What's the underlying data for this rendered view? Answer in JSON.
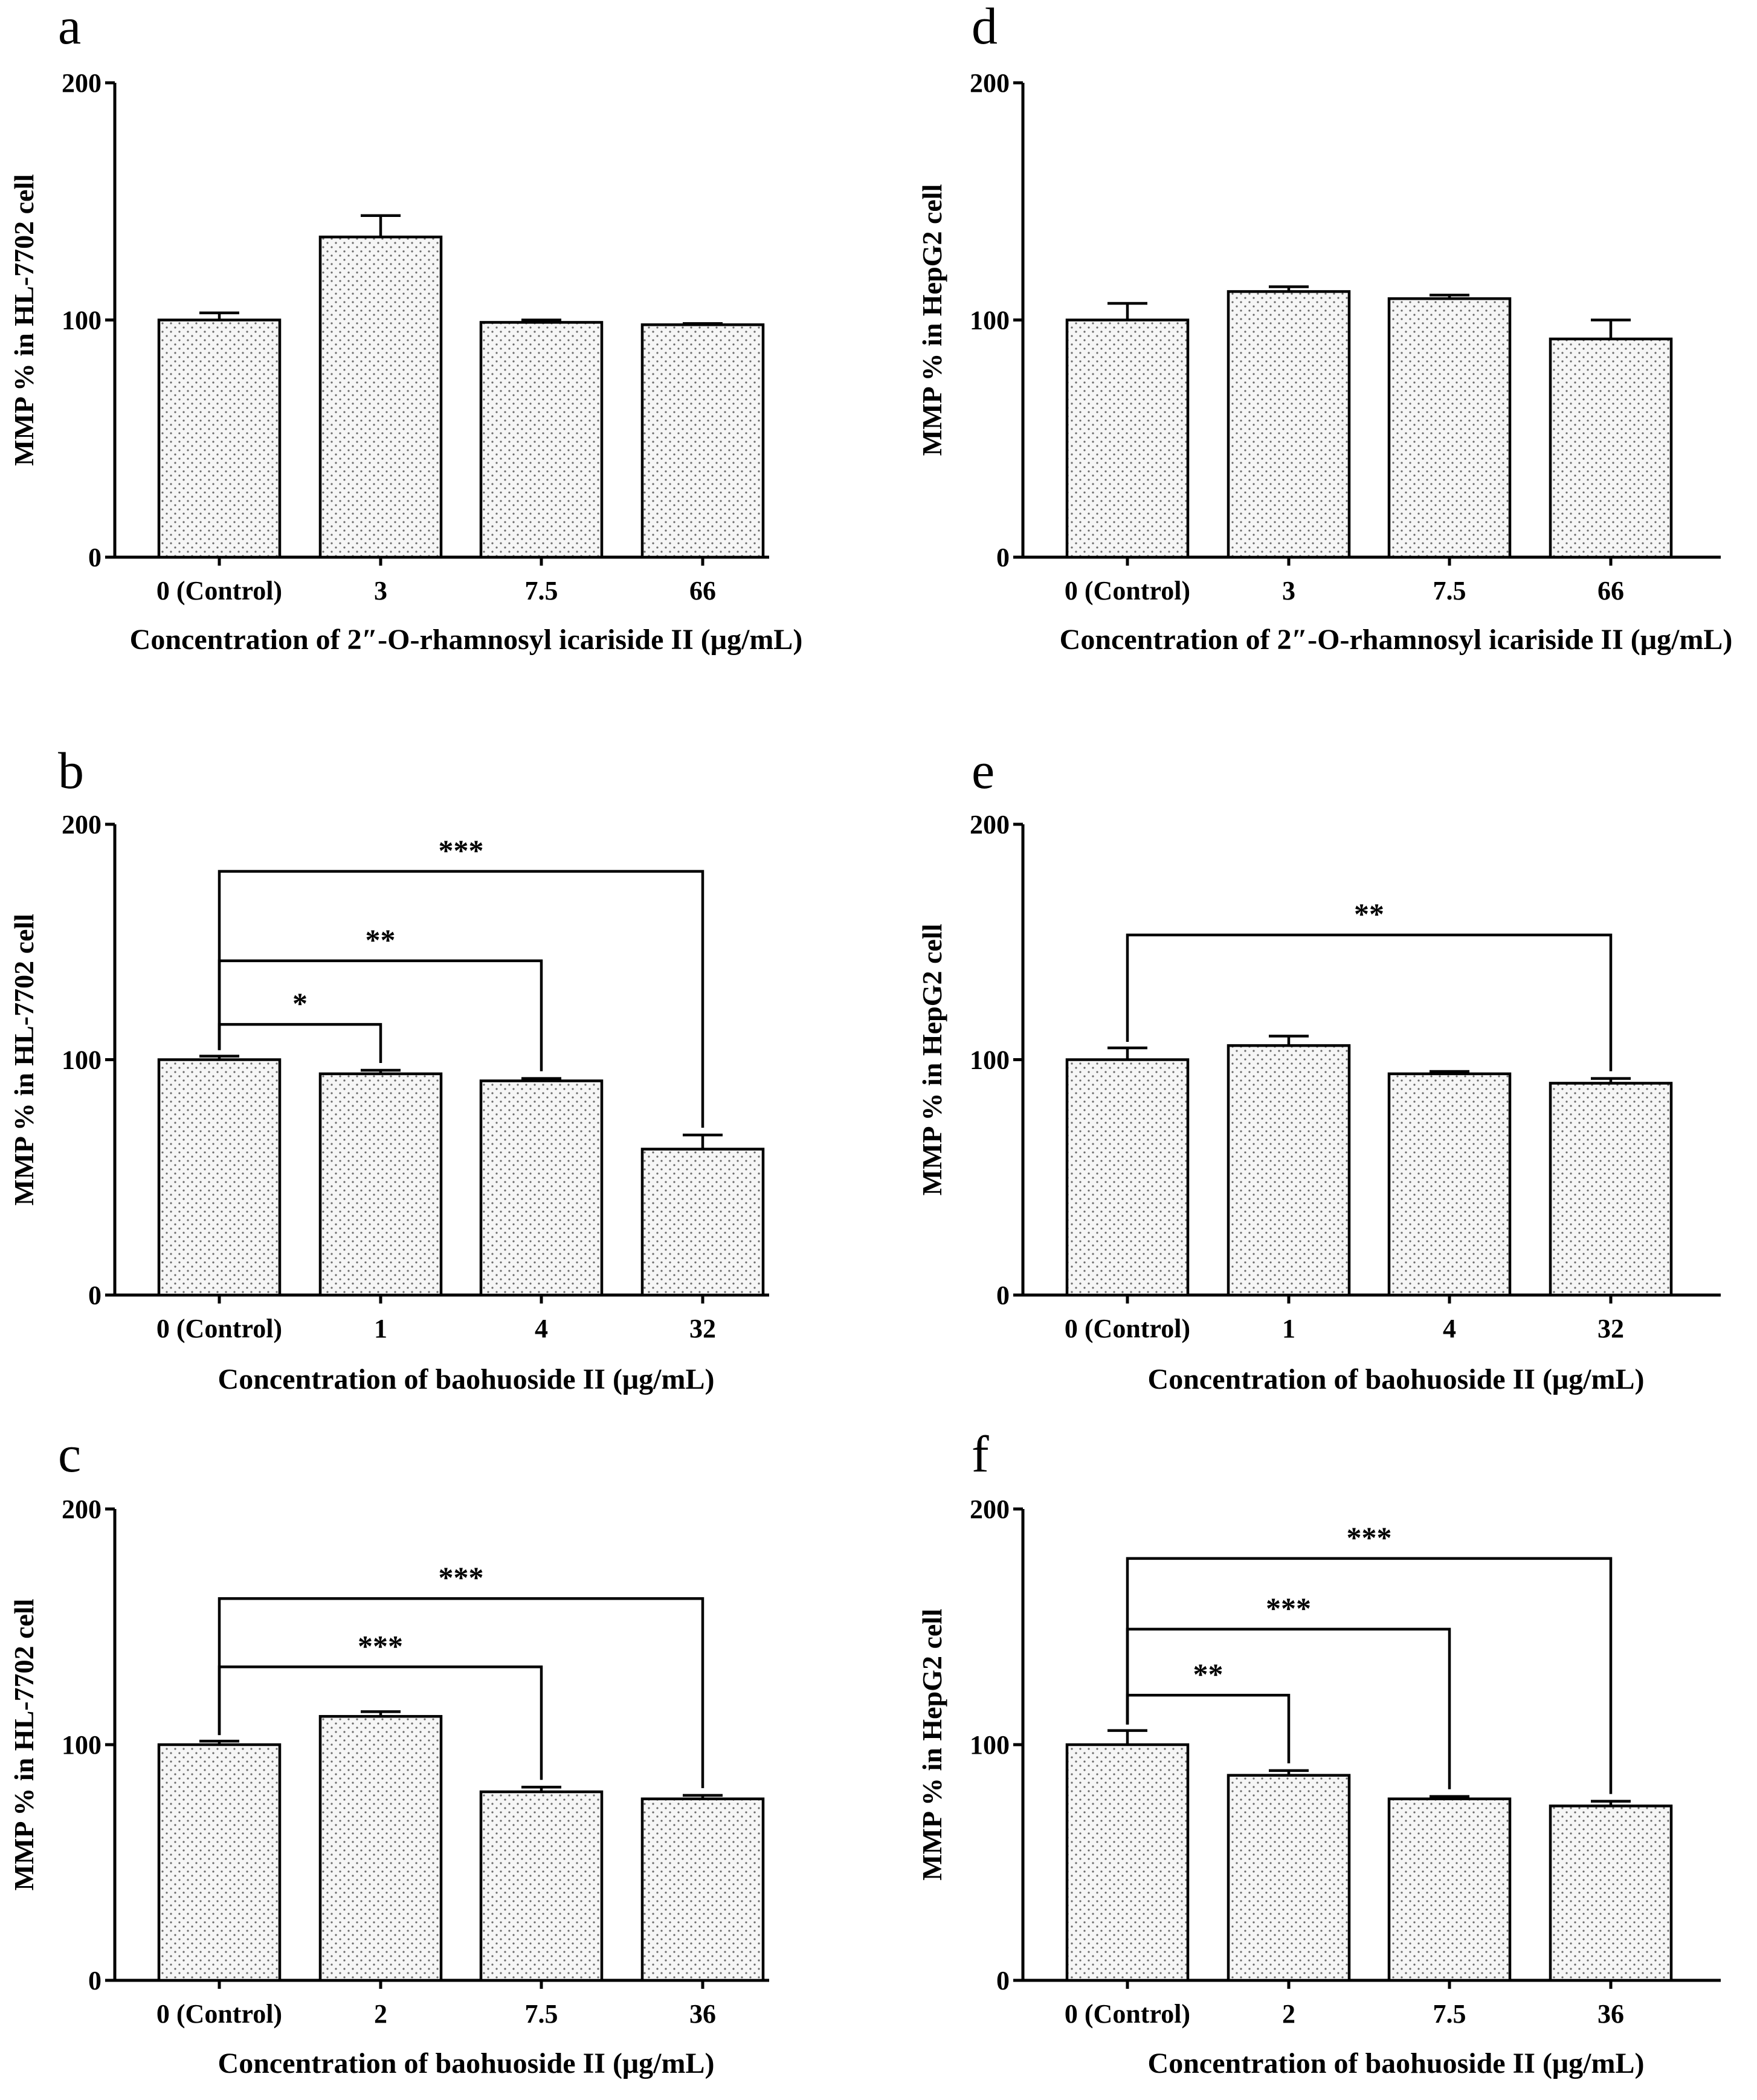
{
  "figure": {
    "panels": [
      {
        "id": "a",
        "letter": "a",
        "ylabel": "MMP % in HL-7702 cell",
        "xlabel": "Concentration of 2″-O-rhamnosyl icariside II (μg/mL)",
        "ytick_labels": [
          "0",
          "100",
          "200"
        ]
      },
      {
        "id": "b",
        "letter": "b",
        "ylabel": "MMP % in HL-7702 cell",
        "xlabel": "Concentration of baohuoside II (μg/mL)",
        "ytick_labels": [
          "0",
          "100",
          "200"
        ]
      },
      {
        "id": "c",
        "letter": "c",
        "ylabel": "MMP % in HL-7702 cell",
        "xlabel": "Concentration of baohuoside II (μg/mL)",
        "ytick_labels": [
          "0",
          "100",
          "200"
        ]
      },
      {
        "id": "d",
        "letter": "d",
        "ylabel": "MMP % in HepG2 cell",
        "xlabel": "Concentration of 2″-O-rhamnosyl icariside II (μg/mL)",
        "ytick_labels": [
          "0",
          "100",
          "200"
        ]
      },
      {
        "id": "e",
        "letter": "e",
        "ylabel": "MMP % in HepG2 cell",
        "xlabel": "Concentration of baohuoside II (μg/mL)",
        "ytick_labels": [
          "0",
          "100",
          "200"
        ]
      },
      {
        "id": "f",
        "letter": "f",
        "ylabel": "MMP % in HepG2 cell",
        "xlabel": "Concentration of baohuoside II (μg/mL)",
        "ytick_labels": [
          "0",
          "100",
          "200"
        ]
      }
    ]
  },
  "chart_data": [
    {
      "id": "a",
      "type": "bar",
      "title": "a",
      "xlabel": "Concentration of 2″-O-rhamnosyl icariside II (μg/mL)",
      "ylabel": "MMP % in HL-7702 cell",
      "ylim": [
        0,
        200
      ],
      "yticks": [
        0,
        100,
        200
      ],
      "categories": [
        "0 (Control)",
        "3",
        "7.5",
        "66"
      ],
      "values": [
        100,
        135,
        99,
        98
      ],
      "errors": [
        3,
        9,
        1,
        0.5
      ],
      "significance": []
    },
    {
      "id": "b",
      "type": "bar",
      "title": "b",
      "xlabel": "Concentration of baohuoside II (μg/mL)",
      "ylabel": "MMP % in HL-7702 cell",
      "ylim": [
        0,
        200
      ],
      "yticks": [
        0,
        100,
        200
      ],
      "categories": [
        "0 (Control)",
        "1",
        "4",
        "32"
      ],
      "values": [
        100,
        94,
        91,
        62
      ],
      "errors": [
        1.5,
        1.5,
        1,
        6
      ],
      "significance": [
        {
          "from": 0,
          "to": 1,
          "label": "*",
          "level": 115
        },
        {
          "from": 0,
          "to": 2,
          "label": "**",
          "level": 142
        },
        {
          "from": 0,
          "to": 3,
          "label": "***",
          "level": 180
        }
      ]
    },
    {
      "id": "c",
      "type": "bar",
      "title": "c",
      "xlabel": "Concentration of baohuoside II (μg/mL)",
      "ylabel": "MMP % in HL-7702 cell",
      "ylim": [
        0,
        200
      ],
      "yticks": [
        0,
        100,
        200
      ],
      "categories": [
        "0 (Control)",
        "2",
        "7.5",
        "36"
      ],
      "values": [
        100,
        112,
        80,
        77
      ],
      "errors": [
        1.5,
        2,
        2,
        1.5
      ],
      "significance": [
        {
          "from": 0,
          "to": 2,
          "label": "***",
          "level": 133
        },
        {
          "from": 0,
          "to": 3,
          "label": "***",
          "level": 162
        }
      ]
    },
    {
      "id": "d",
      "type": "bar",
      "title": "d",
      "xlabel": "Concentration of 2″-O-rhamnosyl icariside II (μg/mL)",
      "ylabel": "MMP % in HepG2 cell",
      "ylim": [
        0,
        200
      ],
      "yticks": [
        0,
        100,
        200
      ],
      "categories": [
        "0 (Control)",
        "3",
        "7.5",
        "66"
      ],
      "values": [
        100,
        112,
        109,
        92
      ],
      "errors": [
        7,
        2,
        1.5,
        8
      ],
      "significance": []
    },
    {
      "id": "e",
      "type": "bar",
      "title": "e",
      "xlabel": "Concentration of baohuoside II (μg/mL)",
      "ylabel": "MMP % in HepG2 cell",
      "ylim": [
        0,
        200
      ],
      "yticks": [
        0,
        100,
        200
      ],
      "categories": [
        "0 (Control)",
        "1",
        "4",
        "32"
      ],
      "values": [
        100,
        106,
        94,
        90
      ],
      "errors": [
        5,
        4,
        1,
        2
      ],
      "significance": [
        {
          "from": 0,
          "to": 3,
          "label": "**",
          "level": 153
        }
      ]
    },
    {
      "id": "f",
      "type": "bar",
      "title": "f",
      "xlabel": "Concentration of baohuoside II (μg/mL)",
      "ylabel": "MMP % in HepG2 cell",
      "ylim": [
        0,
        200
      ],
      "yticks": [
        0,
        100,
        200
      ],
      "categories": [
        "0 (Control)",
        "2",
        "7.5",
        "36"
      ],
      "values": [
        100,
        87,
        77,
        74
      ],
      "errors": [
        6,
        2,
        1,
        2
      ],
      "significance": [
        {
          "from": 0,
          "to": 1,
          "label": "**",
          "level": 121
        },
        {
          "from": 0,
          "to": 2,
          "label": "***",
          "level": 149
        },
        {
          "from": 0,
          "to": 3,
          "label": "***",
          "level": 179
        }
      ]
    }
  ]
}
